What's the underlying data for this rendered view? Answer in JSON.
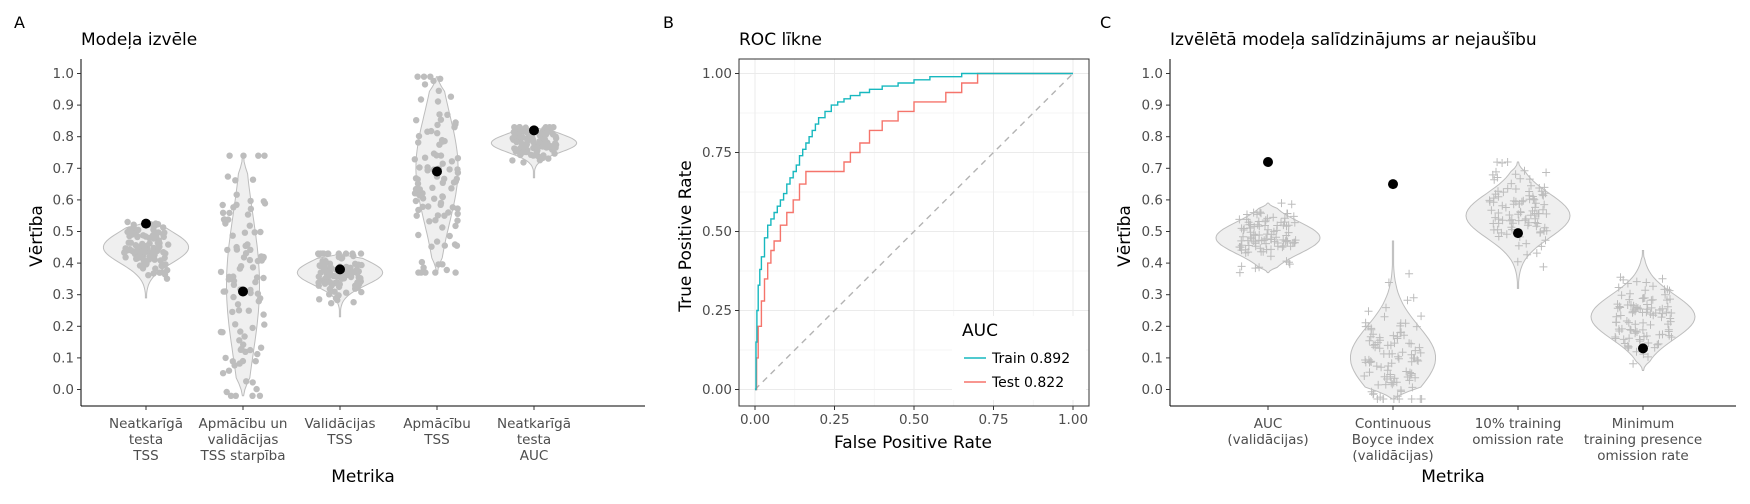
{
  "panels": {
    "a": {
      "letter": "A",
      "title": "Modeļa izvēle"
    },
    "b": {
      "letter": "B",
      "title": "ROC līkne"
    },
    "c": {
      "letter": "C",
      "title": "Izvēlētā modeļa salīdzinājums ar nejaušību"
    }
  },
  "colors": {
    "jitter_gray": "#bdbdbd",
    "violin_fill": "#efefef",
    "violin_stroke": "#bdbdbd",
    "point": "#000000",
    "train": "#17b8bf",
    "test": "#f5746b",
    "diagonal": "#b3b3b3",
    "grid": "#ebebeb"
  },
  "chart_data": [
    {
      "type": "scatter",
      "subtype": "violin-jitter",
      "title": "Modeļa izvēle",
      "xlabel": "Metrika",
      "ylabel": "Vērtība",
      "ylim": [
        0,
        1
      ],
      "yticks": [
        "0.0",
        "0.1",
        "0.2",
        "0.3",
        "0.4",
        "0.5",
        "0.6",
        "0.7",
        "0.8",
        "0.9",
        "1.0"
      ],
      "grid": false,
      "marker": "circle",
      "categories": [
        [
          "Neatkarīgā",
          "testa",
          "TSS"
        ],
        [
          "Apmācību un",
          "validācijas",
          "TSS starpība"
        ],
        [
          "Validācijas",
          "TSS"
        ],
        [
          "Apmācību",
          "TSS"
        ],
        [
          "Neatkarīgā",
          "testa",
          "AUC"
        ]
      ],
      "distributions": [
        {
          "min": 0.29,
          "max": 0.53,
          "center": 0.45,
          "spread": 0.05
        },
        {
          "min": -0.02,
          "max": 0.74,
          "center": 0.33,
          "spread": 0.22
        },
        {
          "min": 0.23,
          "max": 0.43,
          "center": 0.37,
          "spread": 0.04
        },
        {
          "min": 0.37,
          "max": 0.99,
          "center": 0.7,
          "spread": 0.17
        },
        {
          "min": 0.67,
          "max": 0.83,
          "center": 0.78,
          "spread": 0.03
        }
      ],
      "selected": [
        0.525,
        0.31,
        0.38,
        0.69,
        0.82
      ]
    },
    {
      "type": "line",
      "title": "ROC līkne",
      "xlabel": "False Positive Rate",
      "ylabel": "True Positive Rate",
      "xlim": [
        0,
        1
      ],
      "ylim": [
        0,
        1
      ],
      "xticks": [
        "0.00",
        "0.25",
        "0.50",
        "0.75",
        "1.00"
      ],
      "yticks": [
        "0.00",
        "0.25",
        "0.50",
        "0.75",
        "1.00"
      ],
      "grid": true,
      "legend": {
        "title": "AUC",
        "position": "bottom-right"
      },
      "series": [
        {
          "name": "Train 0.892",
          "x": [
            0,
            0.003,
            0.006,
            0.01,
            0.015,
            0.02,
            0.03,
            0.04,
            0.05,
            0.06,
            0.07,
            0.08,
            0.09,
            0.1,
            0.11,
            0.12,
            0.13,
            0.14,
            0.15,
            0.16,
            0.17,
            0.18,
            0.19,
            0.2,
            0.22,
            0.24,
            0.26,
            0.28,
            0.3,
            0.33,
            0.36,
            0.4,
            0.45,
            0.5,
            0.55,
            0.6,
            0.65,
            0.7,
            0.8,
            1.0
          ],
          "y": [
            0,
            0.15,
            0.25,
            0.33,
            0.38,
            0.42,
            0.48,
            0.52,
            0.54,
            0.56,
            0.58,
            0.6,
            0.62,
            0.65,
            0.67,
            0.69,
            0.71,
            0.74,
            0.76,
            0.78,
            0.8,
            0.82,
            0.84,
            0.86,
            0.88,
            0.9,
            0.91,
            0.92,
            0.93,
            0.94,
            0.95,
            0.96,
            0.97,
            0.98,
            0.99,
            0.99,
            1.0,
            1.0,
            1.0,
            1.0
          ]
        },
        {
          "name": "Test 0.822",
          "x": [
            0,
            0.005,
            0.01,
            0.02,
            0.03,
            0.04,
            0.05,
            0.06,
            0.08,
            0.1,
            0.12,
            0.14,
            0.16,
            0.2,
            0.25,
            0.28,
            0.3,
            0.33,
            0.36,
            0.4,
            0.45,
            0.5,
            0.55,
            0.58,
            0.6,
            0.65,
            0.7,
            0.8,
            1.0
          ],
          "y": [
            0,
            0.1,
            0.2,
            0.28,
            0.35,
            0.4,
            0.44,
            0.47,
            0.52,
            0.56,
            0.6,
            0.65,
            0.69,
            0.69,
            0.69,
            0.72,
            0.75,
            0.78,
            0.82,
            0.85,
            0.88,
            0.91,
            0.91,
            0.91,
            0.94,
            0.97,
            1.0,
            1.0,
            1.0
          ]
        },
        {
          "name": "",
          "style": "dashed",
          "x": [
            0,
            1
          ],
          "y": [
            0,
            1
          ]
        }
      ]
    },
    {
      "type": "scatter",
      "subtype": "violin-jitter",
      "title": "Izvēlētā modeļa salīdzinājums ar nejaušību",
      "xlabel": "Metrika",
      "ylabel": "Vērtība",
      "ylim": [
        0,
        1
      ],
      "yticks": [
        "0.0",
        "0.1",
        "0.2",
        "0.3",
        "0.4",
        "0.5",
        "0.6",
        "0.7",
        "0.8",
        "0.9",
        "1.0"
      ],
      "grid": false,
      "marker": "plus",
      "categories": [
        [
          "AUC",
          "(validācijas)"
        ],
        [
          "Continuous",
          "Boyce index",
          "(validācijas)"
        ],
        [
          "10% training",
          "omission rate"
        ],
        [
          "Minimum",
          "training presence",
          "omission rate"
        ]
      ],
      "distributions": [
        {
          "min": 0.37,
          "max": 0.59,
          "center": 0.48,
          "spread": 0.05
        },
        {
          "min": -0.03,
          "max": 0.47,
          "center": 0.1,
          "spread": 0.1
        },
        {
          "min": 0.32,
          "max": 0.72,
          "center": 0.55,
          "spread": 0.07
        },
        {
          "min": 0.06,
          "max": 0.44,
          "center": 0.23,
          "spread": 0.07
        }
      ],
      "selected": [
        0.72,
        0.65,
        0.495,
        0.13
      ]
    }
  ]
}
